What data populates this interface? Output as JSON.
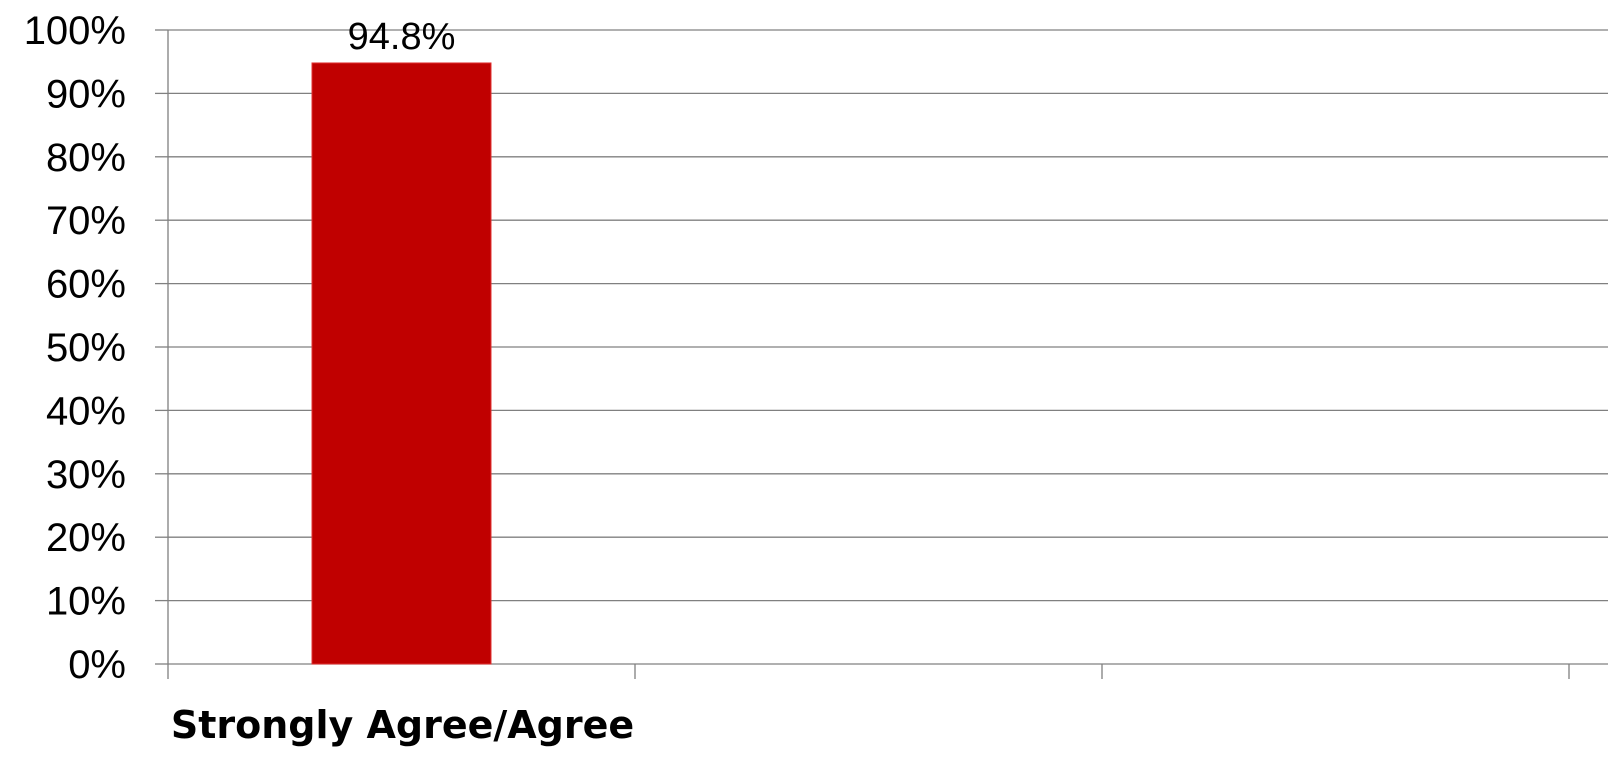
{
  "chart_data": {
    "type": "bar",
    "categories": [
      "Strongly Agree/Agree",
      "",
      ""
    ],
    "values": [
      94.8,
      null,
      null
    ],
    "data_labels": [
      "94.8%",
      "",
      ""
    ],
    "title": "",
    "xlabel": "",
    "ylabel": "",
    "ylim": [
      0,
      100
    ],
    "yticks": [
      0,
      10,
      20,
      30,
      40,
      50,
      60,
      70,
      80,
      90,
      100
    ],
    "ytick_labels": [
      "0%",
      "10%",
      "20%",
      "30%",
      "40%",
      "50%",
      "60%",
      "70%",
      "80%",
      "90%",
      "100%"
    ],
    "grid": true,
    "legend": "none",
    "colors": {
      "bar": "#c00000",
      "grid": "#808080",
      "axis": "#808080",
      "text": "#000000"
    }
  }
}
